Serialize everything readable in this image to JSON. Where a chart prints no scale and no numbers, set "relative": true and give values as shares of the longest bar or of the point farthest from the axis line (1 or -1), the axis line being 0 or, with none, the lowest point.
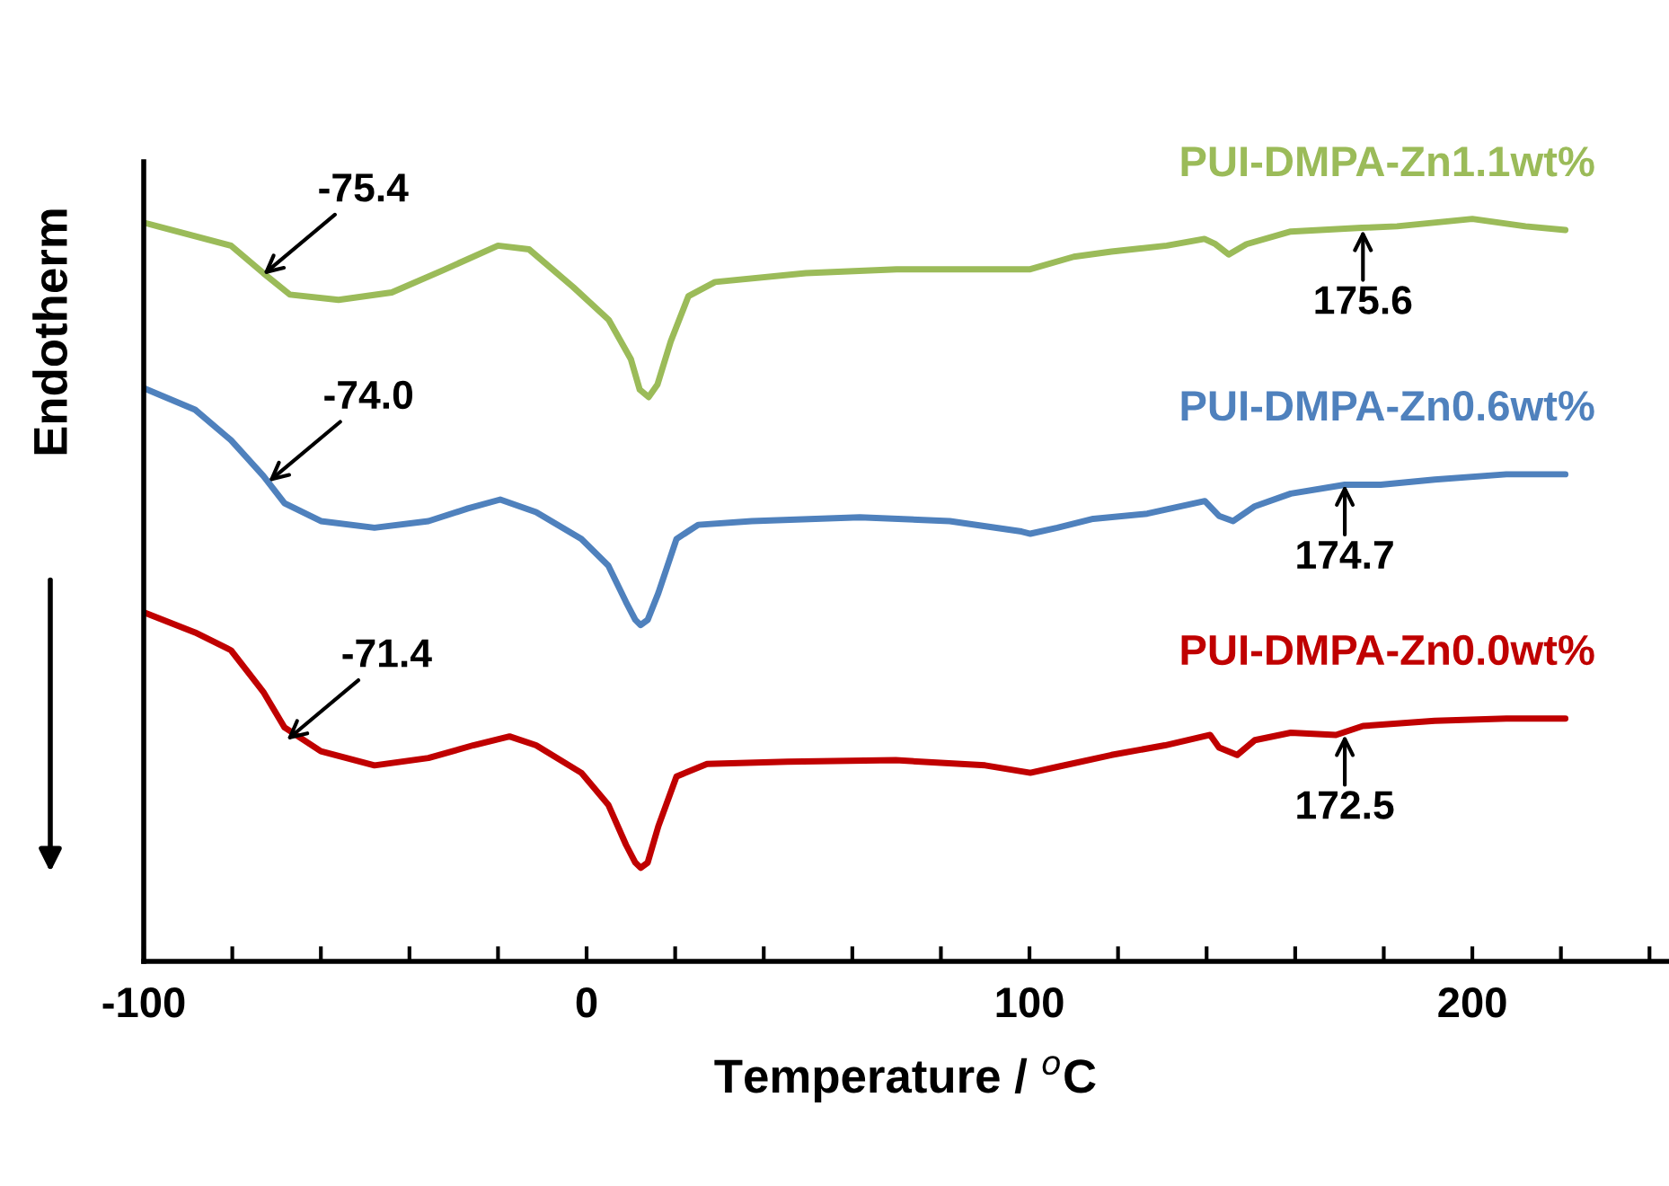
{
  "chart_data": {
    "type": "line",
    "relative": true,
    "xlabel": "Temperature / $^{o}$C",
    "ylabel": "Endotherm",
    "xlim": [
      -100,
      244
    ],
    "xticks": [
      -100,
      {
        "value": -80,
        "label": null
      },
      {
        "value": -60,
        "label": null
      },
      {
        "value": -40,
        "label": null
      },
      {
        "value": -20,
        "label": null
      },
      0,
      {
        "value": 20,
        "label": null
      },
      {
        "value": 40,
        "label": null
      },
      {
        "value": 60,
        "label": null
      },
      {
        "value": 80,
        "label": null
      },
      100,
      {
        "value": 120,
        "label": null
      },
      {
        "value": 140,
        "label": null
      },
      {
        "value": 160,
        "label": null
      },
      {
        "value": 180,
        "label": null
      },
      200,
      {
        "value": 220,
        "label": null
      },
      {
        "value": 240,
        "label": null
      }
    ],
    "grid": false,
    "legend": false,
    "marker": "none",
    "line_style": "solid",
    "tick_labels": "x",
    "series": [
      {
        "name": "PUI-DMPA-Zn1.1wt%",
        "color": "#9bbb59",
        "x": [
          -100,
          -80.3,
          -73,
          -67,
          -56,
          -44,
          -32,
          -20,
          -13,
          -3,
          5,
          10,
          12,
          14,
          16,
          19,
          23,
          29,
          49.5,
          70,
          90,
          100,
          110,
          118.5,
          131,
          139.5,
          142,
          145,
          149,
          159,
          175,
          183,
          200,
          212,
          221
        ],
        "values": [
          0.995,
          0.964,
          0.927,
          0.898,
          0.891,
          0.901,
          0.932,
          0.964,
          0.959,
          0.908,
          0.864,
          0.811,
          0.77,
          0.76,
          0.777,
          0.835,
          0.896,
          0.915,
          0.927,
          0.932,
          0.932,
          0.932,
          0.949,
          0.956,
          0.964,
          0.973,
          0.966,
          0.952,
          0.966,
          0.983,
          0.988,
          0.99,
          1.0,
          0.99,
          0.985
        ]
      },
      {
        "name": "PUI-DMPA-Zn0.6wt%",
        "color": "#4f81bd",
        "x": [
          -100,
          -88.4,
          -80.3,
          -73,
          -68.2,
          -60,
          -47.9,
          -35.7,
          -26.8,
          -19.5,
          -11.4,
          -1.2,
          4.9,
          8.9,
          11,
          12.2,
          13.8,
          16.2,
          20.3,
          25.2,
          37.3,
          61.7,
          82,
          98.2,
          100.2,
          106.3,
          114.4,
          126.6,
          139.6,
          142.8,
          146,
          150.9,
          159,
          171.2,
          179.3,
          191.5,
          207.7,
          221
        ],
        "values": [
          0.772,
          0.743,
          0.702,
          0.654,
          0.617,
          0.593,
          0.584,
          0.593,
          0.61,
          0.622,
          0.605,
          0.569,
          0.533,
          0.484,
          0.46,
          0.453,
          0.46,
          0.496,
          0.569,
          0.588,
          0.593,
          0.598,
          0.593,
          0.579,
          0.576,
          0.584,
          0.596,
          0.603,
          0.62,
          0.6,
          0.593,
          0.613,
          0.63,
          0.642,
          0.642,
          0.649,
          0.656,
          0.656
        ]
      },
      {
        "name": "PUI-DMPA-Zn0.0wt%",
        "color": "#c00000",
        "x": [
          -100,
          -88.4,
          -80.3,
          -73,
          -68.2,
          -60,
          -47.9,
          -35.7,
          -25.6,
          -17.4,
          -11.4,
          -1.2,
          4.9,
          8.9,
          11,
          12.2,
          13.8,
          16.2,
          20.3,
          27.2,
          45.4,
          69.8,
          90,
          100.2,
          106.3,
          118.5,
          130.6,
          140.8,
          142.8,
          146.9,
          150.9,
          159,
          169.2,
          175.3,
          191.5,
          207.7,
          221
        ],
        "values": [
          0.47,
          0.443,
          0.419,
          0.363,
          0.315,
          0.283,
          0.264,
          0.274,
          0.291,
          0.303,
          0.291,
          0.254,
          0.211,
          0.157,
          0.133,
          0.126,
          0.133,
          0.182,
          0.249,
          0.266,
          0.269,
          0.271,
          0.264,
          0.254,
          0.262,
          0.278,
          0.291,
          0.305,
          0.288,
          0.278,
          0.298,
          0.308,
          0.305,
          0.317,
          0.324,
          0.327,
          0.327
        ]
      }
    ],
    "annotations": [
      {
        "text": "-75.4",
        "x": -73,
        "y": 0.925
      },
      {
        "text": "-74.0",
        "x": -71.8,
        "y": 0.646
      },
      {
        "text": "-71.4",
        "x": -67.7,
        "y": 0.298
      },
      {
        "text": "175.6",
        "x": 175.3,
        "y": 0.985
      },
      {
        "text": "174.7",
        "x": 171.2,
        "y": 0.642
      },
      {
        "text": "172.5",
        "x": 171.2,
        "y": 0.305
      }
    ]
  }
}
